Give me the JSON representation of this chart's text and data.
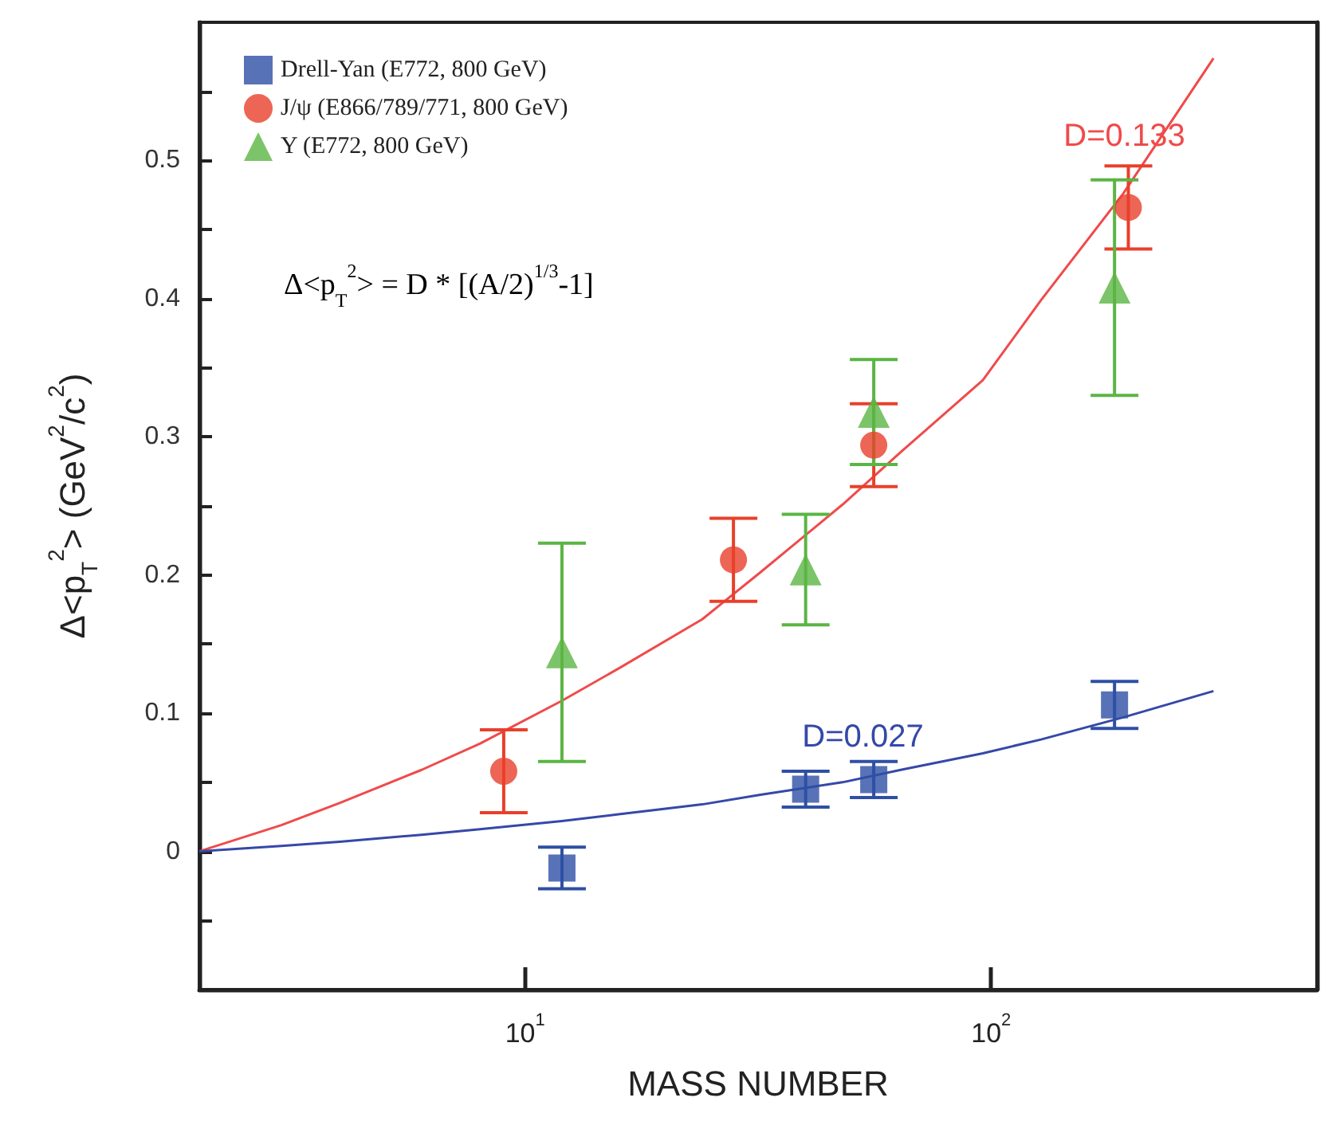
{
  "chart_data": {
    "type": "scatter",
    "xlabel": "MASS NUMBER",
    "ylabel": "Δ<p$_{T}$$^{2}$> (GeV$^{2}$/c$^{2}$)",
    "xlim": [
      2,
      500
    ],
    "ylim": [
      -0.1,
      0.6
    ],
    "log": "x",
    "xticks": [
      {
        "value": 10,
        "label": "10$^{1}$"
      },
      {
        "value": 100,
        "label": "10$^{2}$"
      }
    ],
    "yticks": [
      {
        "value": -0.05,
        "label": null
      },
      0,
      {
        "value": 0.05,
        "label": null
      },
      0.1,
      {
        "value": 0.15,
        "label": null
      },
      0.2,
      {
        "value": 0.25,
        "label": null
      },
      0.3,
      {
        "value": 0.35,
        "label": null
      },
      0.4,
      {
        "value": 0.45,
        "label": null
      },
      0.5,
      {
        "value": 0.55,
        "label": null
      }
    ],
    "grid": false,
    "legend": "top left",
    "annotations": [
      "Δ<p$_{T}$$^{2}$> = D * [(A/2)$^{1/3}$-1]"
    ],
    "series": [
      {
        "name": "Drell-Yan (E772, 800 GeV)",
        "marker": "square",
        "color": "#2e4fa5",
        "x": [
          12,
          40,
          56,
          184
        ],
        "values": [
          -0.012,
          0.045,
          0.052,
          0.106
        ],
        "errors": [
          0.015,
          0.013,
          0.013,
          0.017
        ]
      },
      {
        "name": "J/ψ (E866/789/771, 800 GeV)",
        "marker": "circle",
        "color": "#e8402a",
        "x": [
          9,
          28,
          56,
          197
        ],
        "values": [
          0.058,
          0.211,
          0.294,
          0.466
        ],
        "errors": [
          0.03,
          0.03,
          0.03,
          0.03
        ]
      },
      {
        "name": "Υ (E772, 800 GeV)",
        "marker": "triangle",
        "color": "#5bb544",
        "x": [
          12,
          40,
          56,
          184
        ],
        "values": [
          0.144,
          0.204,
          0.318,
          0.408
        ],
        "errors": [
          0.079,
          0.04,
          0.038,
          0.078
        ]
      },
      {
        "name": "D=0.133",
        "type": "line",
        "marker": "none",
        "color": "#f04a4a",
        "x": [
          2,
          3,
          4,
          6,
          8,
          12,
          16,
          24,
          32,
          48,
          64,
          96,
          128,
          192,
          300
        ],
        "values": [
          0,
          0.019,
          0.035,
          0.059,
          0.078,
          0.109,
          0.133,
          0.168,
          0.202,
          0.251,
          0.289,
          0.341,
          0.399,
          0.476,
          0.574
        ]
      },
      {
        "name": "D=0.027",
        "type": "line",
        "marker": "none",
        "color": "#3548a8",
        "x": [
          2,
          3,
          4,
          6,
          8,
          12,
          16,
          24,
          32,
          48,
          64,
          96,
          128,
          192,
          300
        ],
        "values": [
          0,
          0.004,
          0.007,
          0.012,
          0.016,
          0.022,
          0.027,
          0.034,
          0.041,
          0.05,
          0.059,
          0.071,
          0.081,
          0.097,
          0.116
        ]
      }
    ]
  }
}
